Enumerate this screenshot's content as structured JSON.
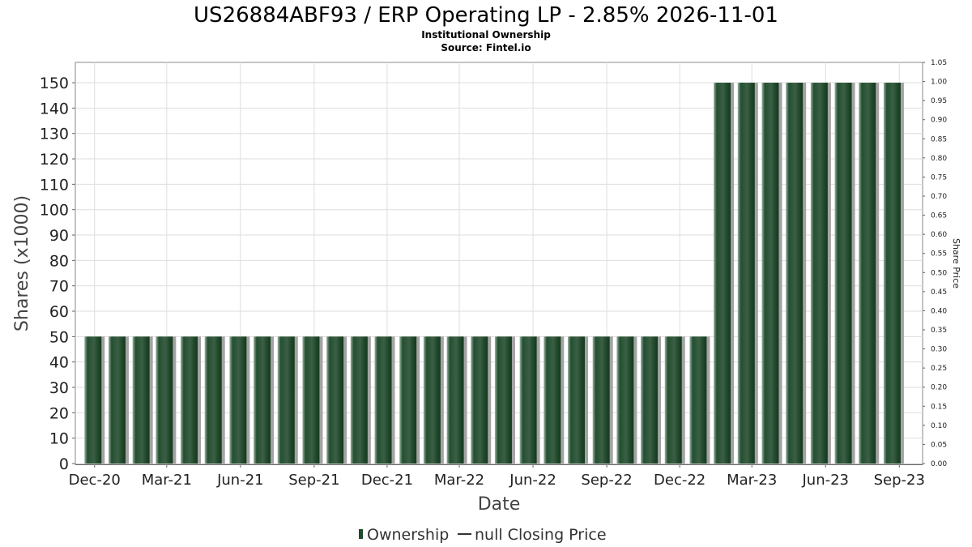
{
  "chart_data": {
    "type": "bar",
    "title": "US26884ABF93 / ERP Operating LP - 2.85% 2026-11-01",
    "subtitle_1": "Institutional Ownership",
    "subtitle_2": "Source: Fintel.io",
    "xlabel": "Date",
    "ylabel": "Shares (x1000)",
    "y2label": "Share Price",
    "ylim": [
      0,
      158
    ],
    "y2lim": [
      0,
      1.05
    ],
    "y_ticks": [
      "0",
      "10",
      "20",
      "30",
      "40",
      "50",
      "60",
      "70",
      "80",
      "90",
      "100",
      "110",
      "120",
      "130",
      "140",
      "150"
    ],
    "y2_ticks": [
      "0.00",
      "0.05",
      "0.10",
      "0.15",
      "0.20",
      "0.25",
      "0.30",
      "0.35",
      "0.40",
      "0.45",
      "0.50",
      "0.55",
      "0.60",
      "0.65",
      "0.70",
      "0.75",
      "0.80",
      "0.85",
      "0.90",
      "0.95",
      "1.00",
      "1.05"
    ],
    "x_ticks": [
      "Dec-20",
      "Mar-21",
      "Jun-21",
      "Sep-21",
      "Dec-21",
      "Mar-22",
      "Jun-22",
      "Sep-22",
      "Dec-22",
      "Mar-23",
      "Jun-23",
      "Sep-23"
    ],
    "x_range": [
      "2020-11-07",
      "2023-09-30"
    ],
    "grid": true,
    "legend_placement": "bottom",
    "series": [
      {
        "name": "Ownership",
        "color": "#1f4a2c",
        "dates": [
          "2020-11-29",
          "2020-12-29",
          "2021-01-28",
          "2021-02-26",
          "2021-03-29",
          "2021-04-28",
          "2021-05-29",
          "2021-06-28",
          "2021-07-28",
          "2021-08-28",
          "2021-09-27",
          "2021-10-27",
          "2021-11-26",
          "2021-12-27",
          "2022-01-26",
          "2022-02-24",
          "2022-03-26",
          "2022-04-25",
          "2022-05-26",
          "2022-06-25",
          "2022-07-25",
          "2022-08-25",
          "2022-09-24",
          "2022-10-24",
          "2022-11-23",
          "2022-12-24",
          "2023-01-23",
          "2023-02-22",
          "2023-03-24",
          "2023-04-23",
          "2023-05-24",
          "2023-06-23",
          "2023-07-23",
          "2023-08-23"
        ],
        "values": [
          50,
          50,
          50,
          50,
          50,
          50,
          50,
          50,
          50,
          50,
          50,
          50,
          50,
          50,
          50,
          50,
          50,
          50,
          50,
          50,
          50,
          50,
          50,
          50,
          50,
          50,
          150,
          150,
          150,
          150,
          150,
          150,
          150,
          150
        ]
      },
      {
        "name": "null Closing Price",
        "color": "#333333",
        "values": []
      }
    ]
  }
}
